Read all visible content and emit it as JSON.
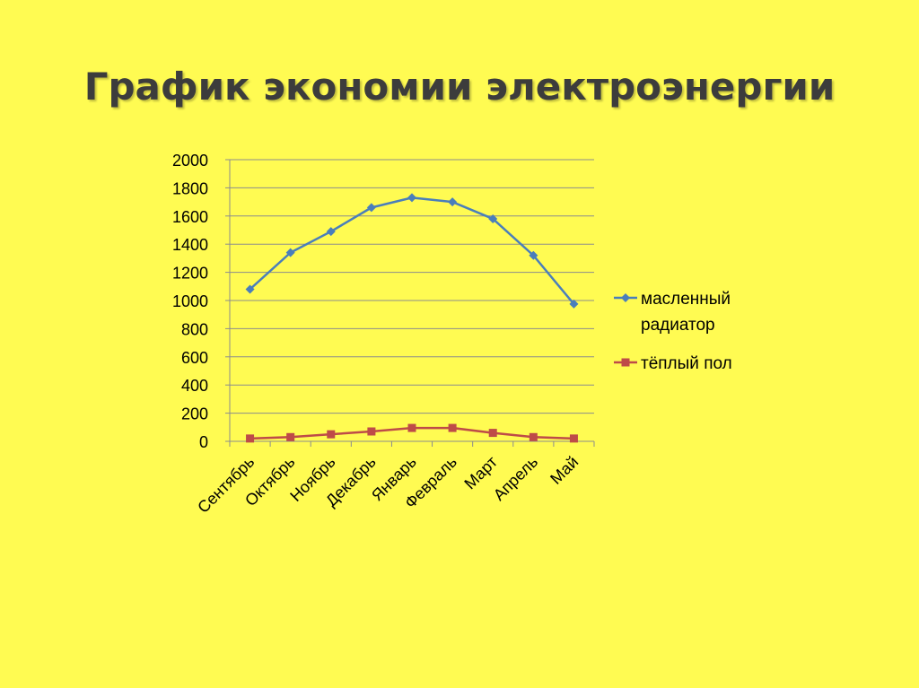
{
  "slide": {
    "title": "График экономии электроэнергии"
  },
  "chart_data": {
    "type": "line",
    "categories": [
      "Сентябрь",
      "Октябрь",
      "Ноябрь",
      "Декабрь",
      "Январь",
      "Февраль",
      "Март",
      "Апрель",
      "Май"
    ],
    "series": [
      {
        "name_lines": [
          "масленный",
          "радиатор"
        ],
        "values": [
          1080,
          1340,
          1490,
          1660,
          1730,
          1700,
          1580,
          1320,
          975
        ],
        "color": "#4a7ebb",
        "marker": "diamond"
      },
      {
        "name_lines": [
          "тёплый пол"
        ],
        "values": [
          20,
          30,
          50,
          70,
          95,
          95,
          60,
          30,
          20
        ],
        "color": "#be4b48",
        "marker": "square"
      }
    ],
    "y_ticks": [
      "0",
      "200",
      "400",
      "600",
      "800",
      "1000",
      "1200",
      "1400",
      "1600",
      "1800",
      "2000"
    ],
    "ylim": [
      0,
      2000
    ],
    "grid": "horizontal",
    "legend_position": "right",
    "title": "",
    "xlabel": "",
    "ylabel": ""
  },
  "colors": {
    "background": "#fffb52",
    "gridline": "#8c8c8c",
    "axis": "#8c8c8c"
  }
}
